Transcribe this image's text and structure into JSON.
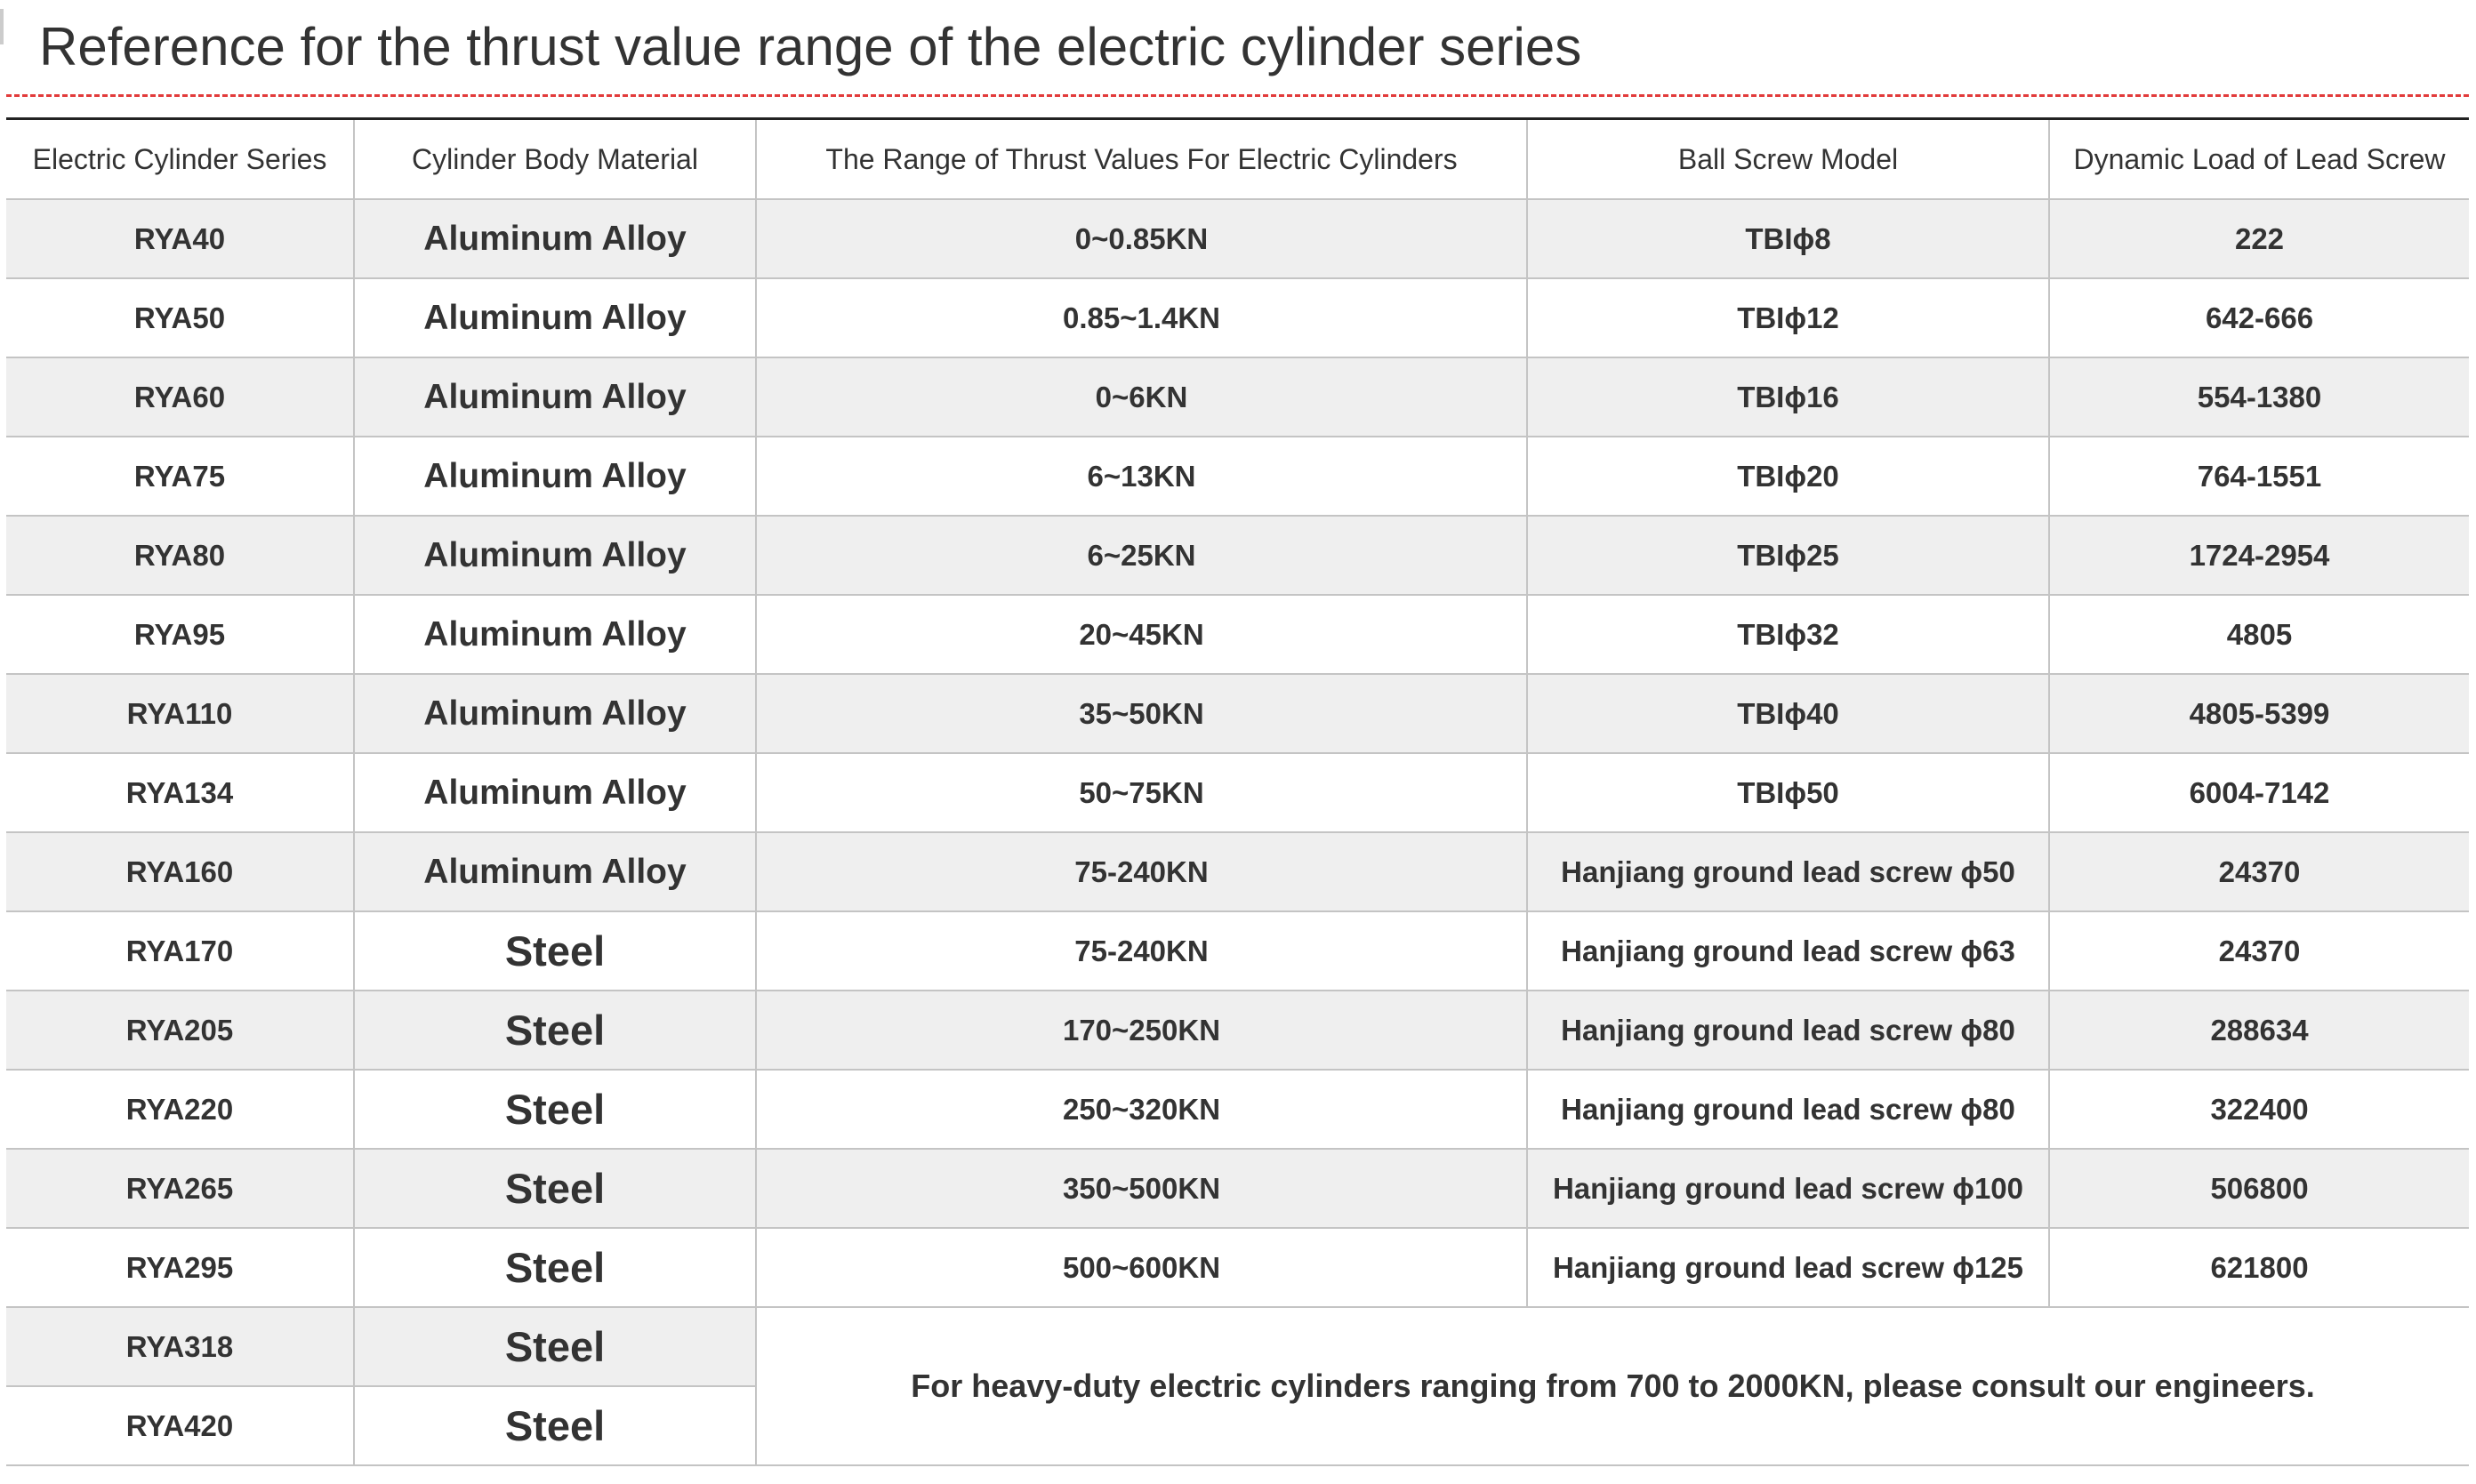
{
  "header": {
    "title": "Reference for the thrust value range of the electric cylinder series"
  },
  "table": {
    "headers": [
      "Electric Cylinder Series",
      "Cylinder Body Material",
      "The Range of Thrust Values For Electric Cylinders",
      "Ball Screw Model",
      "Dynamic Load of Lead Screw"
    ],
    "rows": [
      [
        "RYA40",
        "Aluminum Alloy",
        "0~0.85KN",
        "TBIϕ8",
        "222"
      ],
      [
        "RYA50",
        "Aluminum Alloy",
        "0.85~1.4KN",
        "TBIϕ12",
        "642-666"
      ],
      [
        "RYA60",
        "Aluminum Alloy",
        "0~6KN",
        "TBIϕ16",
        "554-1380"
      ],
      [
        "RYA75",
        "Aluminum Alloy",
        "6~13KN",
        "TBIϕ20",
        "764-1551"
      ],
      [
        "RYA80",
        "Aluminum Alloy",
        "6~25KN",
        "TBIϕ25",
        "1724-2954"
      ],
      [
        "RYA95",
        "Aluminum Alloy",
        "20~45KN",
        "TBIϕ32",
        "4805"
      ],
      [
        "RYA110",
        "Aluminum Alloy",
        "35~50KN",
        "TBIϕ40",
        "4805-5399"
      ],
      [
        "RYA134",
        "Aluminum Alloy",
        "50~75KN",
        "TBIϕ50",
        "6004-7142"
      ],
      [
        "RYA160",
        "Aluminum Alloy",
        "75-240KN",
        "Hanjiang ground lead screw ϕ50",
        "24370"
      ],
      [
        "RYA170",
        "Steel",
        "75-240KN",
        "Hanjiang ground lead screw ϕ63",
        "24370"
      ],
      [
        "RYA205",
        "Steel",
        "170~250KN",
        "Hanjiang ground lead screw ϕ80",
        "288634"
      ],
      [
        "RYA220",
        "Steel",
        "250~320KN",
        "Hanjiang ground lead screw ϕ80",
        "322400"
      ],
      [
        "RYA265",
        "Steel",
        "350~500KN",
        "Hanjiang ground lead screw ϕ100",
        "506800"
      ],
      [
        "RYA295",
        "Steel",
        "500~600KN",
        "Hanjiang ground lead screw ϕ125",
        "621800"
      ],
      [
        "RYA318",
        "Steel"
      ],
      [
        "RYA420",
        "Steel"
      ]
    ],
    "note": "For heavy-duty electric cylinders ranging from 700 to 2000KN, please consult our engineers."
  }
}
